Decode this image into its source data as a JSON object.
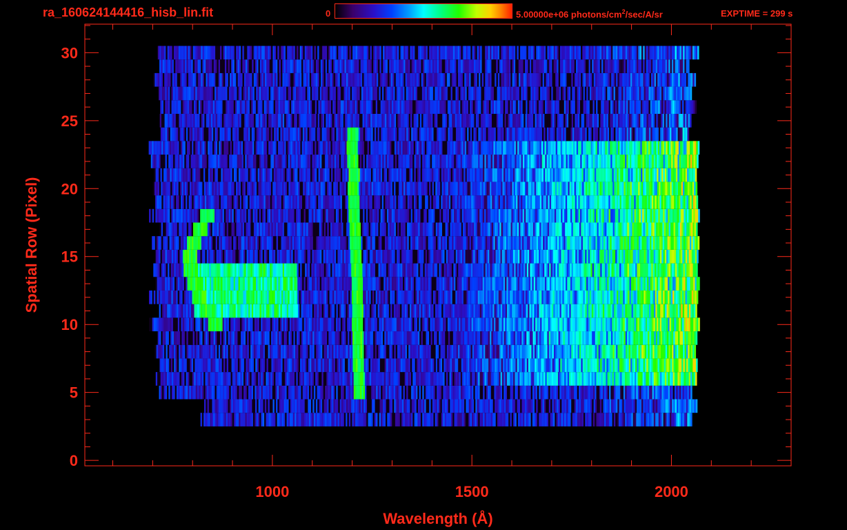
{
  "header": {
    "file_title": "ra_160624144416_hisb_lin.fit",
    "colorbar_min_label": "0",
    "colorbar_max_label": "5.00000e+06 photons/cm",
    "colorbar_max_sup": "2",
    "colorbar_max_tail": "/sec/A/sr",
    "exptime": "EXPTIME = 299 s"
  },
  "colors": {
    "axis": "#ff2a1a",
    "background": "#000000",
    "colormap": [
      "#000000",
      "#3a006a",
      "#2a10c8",
      "#0040ff",
      "#00a0ff",
      "#00ffff",
      "#00ff80",
      "#20ff00",
      "#c0ff00",
      "#ffd000",
      "#ff8000",
      "#ff2000"
    ]
  },
  "chart_data": {
    "type": "heatmap",
    "title": "ra_160624144416_hisb_lin.fit",
    "xlabel": "Wavelength (Å)",
    "ylabel": "Spatial Row (Pixel)",
    "xlim": [
      530,
      2300
    ],
    "ylim": [
      -0.4,
      32.1
    ],
    "x_ticks": [
      1000,
      1500,
      2000
    ],
    "y_ticks": [
      0,
      5,
      10,
      15,
      20,
      25,
      30
    ],
    "colorbar_range": [
      0,
      5000000
    ],
    "colorbar_units": "photons/cm^2/sec/A/sr",
    "grid": false,
    "features": [
      {
        "name": "Lyman-alpha emission line",
        "wavelength": 1216,
        "rows": [
          5,
          24
        ]
      },
      {
        "name": "Arc-shaped emission",
        "wavelength_range": [
          780,
          1100
        ],
        "rows": [
          10,
          18
        ]
      },
      {
        "name": "Long-wavelength continuum",
        "wavelength_range": [
          1650,
          2065
        ],
        "rows": [
          6,
          23
        ]
      }
    ]
  }
}
